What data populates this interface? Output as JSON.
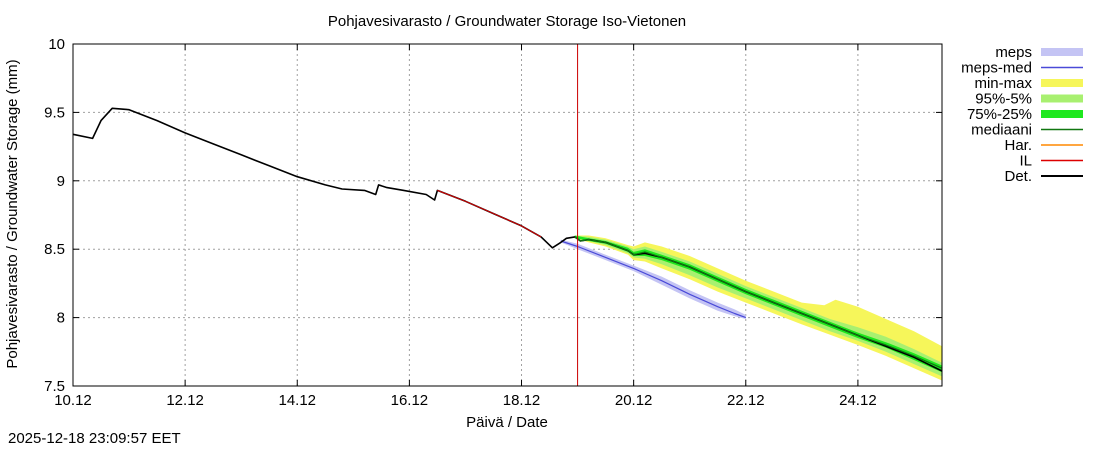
{
  "chart_data": {
    "type": "line",
    "title": "Pohjavesivarasto / Groundwater Storage   Iso-Vietonen",
    "xlabel": "Päivä / Date",
    "ylabel": "Pohjavesivarasto / Groundwater Storage (mm)",
    "xlim": [
      10,
      25.5
    ],
    "ylim": [
      7.5,
      10
    ],
    "x_ticks": [
      {
        "v": 10,
        "label": "10.12"
      },
      {
        "v": 12,
        "label": "12.12"
      },
      {
        "v": 14,
        "label": "14.12"
      },
      {
        "v": 16,
        "label": "16.12"
      },
      {
        "v": 18,
        "label": "18.12"
      },
      {
        "v": 20,
        "label": "20.12"
      },
      {
        "v": 22,
        "label": "22.12"
      },
      {
        "v": 24,
        "label": "24.12"
      }
    ],
    "y_ticks": [
      {
        "v": 7.5,
        "label": "7.5"
      },
      {
        "v": 8,
        "label": "8"
      },
      {
        "v": 8.5,
        "label": "8.5"
      },
      {
        "v": 9,
        "label": "9"
      },
      {
        "v": 9.5,
        "label": "9.5"
      },
      {
        "v": 10,
        "label": "10"
      }
    ],
    "grid": true,
    "legend_position": "outside-right",
    "forecast_start_x": 19.0,
    "legend": [
      {
        "key": "meps",
        "label": "meps",
        "style": "band",
        "color": "#c4c4f4"
      },
      {
        "key": "meps_med",
        "label": "meps-med",
        "style": "line",
        "color": "#4a4ad8"
      },
      {
        "key": "minmax",
        "label": "min-max",
        "style": "band",
        "color": "#f6f65a"
      },
      {
        "key": "p95_5",
        "label": "95%-5%",
        "style": "band",
        "color": "#a8f070"
      },
      {
        "key": "p75_25",
        "label": "75%-25%",
        "style": "band",
        "color": "#1ee81e"
      },
      {
        "key": "mediaani",
        "label": "mediaani",
        "style": "line",
        "color": "#117711"
      },
      {
        "key": "har",
        "label": "Har.",
        "style": "line",
        "color": "#ff8800"
      },
      {
        "key": "il",
        "label": "IL",
        "style": "line",
        "color": "#dd0000"
      },
      {
        "key": "det",
        "label": "Det.",
        "style": "line",
        "color": "#000000"
      }
    ],
    "series": {
      "det": {
        "x": [
          10.0,
          10.35,
          10.5,
          10.7,
          11.0,
          11.5,
          12.0,
          12.5,
          13.0,
          13.5,
          14.0,
          14.5,
          14.8,
          15.2,
          15.4,
          15.45,
          15.6,
          15.9,
          16.3,
          16.45,
          16.5,
          17.0,
          17.5,
          18.0,
          18.35,
          18.55,
          18.7,
          18.8,
          18.95,
          19.05,
          19.2,
          19.5,
          19.7,
          19.9,
          20.0,
          20.2,
          20.5,
          21.0,
          21.5,
          22.0,
          22.5,
          23.0,
          23.5,
          24.0,
          24.5,
          25.0,
          25.5
        ],
        "y": [
          9.34,
          9.31,
          9.44,
          9.53,
          9.52,
          9.44,
          9.35,
          9.27,
          9.19,
          9.11,
          9.03,
          8.97,
          8.94,
          8.93,
          8.9,
          8.97,
          8.95,
          8.93,
          8.9,
          8.86,
          8.93,
          8.85,
          8.76,
          8.67,
          8.59,
          8.51,
          8.55,
          8.58,
          8.59,
          8.56,
          8.57,
          8.55,
          8.52,
          8.49,
          8.46,
          8.47,
          8.44,
          8.37,
          8.28,
          8.19,
          8.11,
          8.03,
          7.95,
          7.87,
          7.79,
          7.71,
          7.61
        ]
      },
      "mediaani": {
        "x": [
          18.95,
          19.05,
          19.2,
          19.5,
          19.7,
          19.9,
          20.0,
          20.2,
          20.5,
          21.0,
          21.5,
          22.0,
          22.5,
          23.0,
          23.5,
          24.0,
          24.5,
          25.0,
          25.5
        ],
        "y": [
          8.59,
          8.56,
          8.57,
          8.55,
          8.52,
          8.49,
          8.46,
          8.48,
          8.44,
          8.37,
          8.28,
          8.19,
          8.11,
          8.03,
          7.95,
          7.87,
          7.8,
          7.72,
          7.63
        ]
      },
      "meps_med": {
        "x": [
          18.7,
          19.0,
          19.5,
          20.0,
          20.5,
          21.0,
          21.5,
          21.8,
          22.0
        ],
        "y": [
          8.56,
          8.52,
          8.44,
          8.36,
          8.27,
          8.17,
          8.08,
          8.03,
          8.0
        ]
      },
      "meps": {
        "x": [
          18.7,
          19.0,
          19.5,
          20.0,
          20.5,
          21.0,
          21.5,
          21.8,
          22.0
        ],
        "lo": [
          8.55,
          8.5,
          8.42,
          8.34,
          8.24,
          8.14,
          8.05,
          8.01,
          7.99
        ],
        "hi": [
          8.57,
          8.54,
          8.46,
          8.38,
          8.3,
          8.2,
          8.11,
          8.06,
          8.02
        ]
      },
      "minmax": {
        "x": [
          18.95,
          19.2,
          19.5,
          19.9,
          20.0,
          20.2,
          20.5,
          21.0,
          21.5,
          22.0,
          22.5,
          23.0,
          23.4,
          23.6,
          24.0,
          24.5,
          25.0,
          25.5
        ],
        "lo": [
          8.58,
          8.55,
          8.52,
          8.46,
          8.42,
          8.41,
          8.36,
          8.28,
          8.19,
          8.11,
          8.03,
          7.95,
          7.89,
          7.86,
          7.8,
          7.72,
          7.63,
          7.54
        ],
        "hi": [
          8.6,
          8.6,
          8.58,
          8.53,
          8.52,
          8.55,
          8.52,
          8.45,
          8.36,
          8.27,
          8.19,
          8.11,
          8.09,
          8.13,
          8.08,
          7.99,
          7.9,
          7.79
        ]
      },
      "p95_5": {
        "x": [
          18.95,
          19.2,
          19.5,
          19.9,
          20.0,
          20.2,
          20.5,
          21.0,
          21.5,
          22.0,
          22.5,
          23.0,
          23.5,
          24.0,
          24.5,
          25.0,
          25.5
        ],
        "lo": [
          8.58,
          8.56,
          8.53,
          8.47,
          8.44,
          8.43,
          8.39,
          8.31,
          8.22,
          8.14,
          8.06,
          7.98,
          7.9,
          7.83,
          7.75,
          7.66,
          7.57
        ],
        "hi": [
          8.6,
          8.59,
          8.57,
          8.52,
          8.5,
          8.52,
          8.48,
          8.41,
          8.32,
          8.23,
          8.15,
          8.07,
          7.99,
          7.93,
          7.86,
          7.77,
          7.67
        ]
      },
      "p75_25": {
        "x": [
          18.95,
          19.2,
          19.5,
          19.9,
          20.0,
          20.2,
          20.5,
          21.0,
          21.5,
          22.0,
          22.5,
          23.0,
          23.5,
          24.0,
          24.5,
          25.0,
          25.5
        ],
        "lo": [
          8.58,
          8.56,
          8.54,
          8.48,
          8.45,
          8.45,
          8.42,
          8.35,
          8.26,
          8.17,
          8.09,
          8.01,
          7.93,
          7.85,
          7.78,
          7.69,
          7.6
        ],
        "hi": [
          8.6,
          8.58,
          8.56,
          8.51,
          8.48,
          8.5,
          8.46,
          8.39,
          8.3,
          8.21,
          8.13,
          8.05,
          7.97,
          7.89,
          7.82,
          7.74,
          7.65
        ]
      },
      "il": {
        "x": [
          16.5,
          17.0,
          17.5,
          18.0,
          18.35
        ],
        "y": [
          8.93,
          8.85,
          8.76,
          8.67,
          8.59
        ]
      }
    }
  },
  "timestamp": "2025-12-18 23:09:57 EET"
}
